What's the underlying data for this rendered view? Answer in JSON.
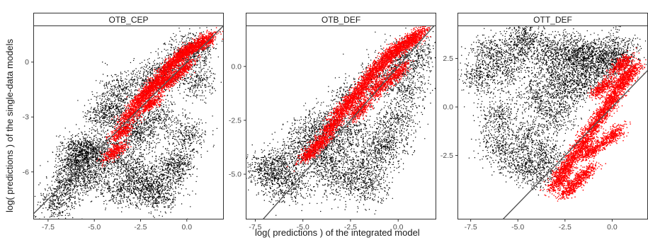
{
  "axes": {
    "xlabel": "log( predictions ) of the integrated model",
    "ylabel": "log( predictions ) of the single-data models"
  },
  "colors": {
    "background_points": "#000000",
    "highlight_points": "#ff0000",
    "identity_line": "#555555",
    "frame": "#333333"
  },
  "chart_data": [
    {
      "type": "scatter",
      "title": "OTB_CEP",
      "xlim": [
        -8.3,
        2.0
      ],
      "ylim": [
        -8.6,
        2.0
      ],
      "x_ticks": [
        -7.5,
        -5.0,
        -2.5,
        0.0
      ],
      "x_tick_labels": [
        "-7.5",
        "-5.0",
        "-2.5",
        "0.0"
      ],
      "y_ticks": [
        0,
        -3,
        -6
      ],
      "y_tick_labels": [
        "0",
        "-3",
        "-6"
      ],
      "reference_line": "y = x",
      "series": [
        {
          "color": "#000000",
          "points": [
            [
              -6.0,
              -5.0
            ],
            [
              -5.8,
              -5.1
            ],
            [
              -5.5,
              -5.0
            ],
            [
              -5.0,
              -4.9
            ],
            [
              -4.5,
              -3.0
            ],
            [
              -4.0,
              -2.5
            ],
            [
              -3.5,
              -1.5
            ],
            [
              -3.0,
              -5.8
            ],
            [
              -2.5,
              -6.6
            ],
            [
              -2.0,
              -7.0
            ],
            [
              -1.5,
              -7.2
            ],
            [
              -1.0,
              -6.0
            ],
            [
              -0.5,
              -5.5
            ],
            [
              0.0,
              -4.0
            ],
            [
              -6.5,
              -6.7
            ],
            [
              -7.0,
              -7.7
            ],
            [
              -2.0,
              -1.0
            ],
            [
              -1.0,
              -0.5
            ],
            [
              0.0,
              0.5
            ],
            [
              -3.0,
              -3.5
            ],
            [
              -4.0,
              -5.0
            ],
            [
              -5.0,
              -6.3
            ],
            [
              -6.0,
              -6.1
            ],
            [
              -3.5,
              -7.0
            ],
            [
              -2.5,
              -4.0
            ],
            [
              -1.5,
              -3.0
            ],
            [
              0.5,
              -1.0
            ],
            [
              0.5,
              0.8
            ]
          ]
        },
        {
          "color": "#ff0000",
          "points": [
            [
              -3.9,
              -4.9
            ],
            [
              -3.5,
              -3.8
            ],
            [
              -3.0,
              -2.8
            ],
            [
              -2.5,
              -2.0
            ],
            [
              -2.0,
              -1.5
            ],
            [
              -1.5,
              -1.0
            ],
            [
              -1.0,
              -0.3
            ],
            [
              -0.5,
              0.2
            ],
            [
              0.0,
              0.6
            ],
            [
              0.5,
              0.9
            ],
            [
              1.0,
              1.1
            ],
            [
              -2.0,
              -2.3
            ],
            [
              -1.0,
              -1.1
            ],
            [
              -0.2,
              -0.4
            ]
          ]
        }
      ]
    },
    {
      "type": "scatter",
      "title": "OTB_DEF",
      "xlim": [
        -8.0,
        2.0
      ],
      "ylim": [
        -7.1,
        1.9
      ],
      "x_ticks": [
        -7.5,
        -5.0,
        -2.5,
        0.0
      ],
      "x_tick_labels": [
        "-7.5",
        "-5.0",
        "-2.5",
        "0.0"
      ],
      "y_ticks": [
        0.0,
        -2.5,
        -5.0
      ],
      "y_tick_labels": [
        "0.0",
        "-2.5",
        "-5.0"
      ],
      "reference_line": "y = x",
      "series": [
        {
          "color": "#000000",
          "points": [
            [
              -7.0,
              -4.8
            ],
            [
              -6.5,
              -5.2
            ],
            [
              -6.0,
              -4.5
            ],
            [
              -5.5,
              -5.5
            ],
            [
              -5.0,
              -3.8
            ],
            [
              -4.5,
              -3.0
            ],
            [
              -4.0,
              -4.5
            ],
            [
              -3.5,
              -2.8
            ],
            [
              -3.0,
              -5.2
            ],
            [
              -2.5,
              -1.5
            ],
            [
              -2.0,
              -4.8
            ],
            [
              -1.5,
              -5.6
            ],
            [
              -1.0,
              -4.0
            ],
            [
              -0.5,
              -3.5
            ],
            [
              0.0,
              -2.5
            ],
            [
              0.5,
              -1.0
            ],
            [
              -1.0,
              -0.5
            ],
            [
              0.0,
              0.3
            ],
            [
              -2.5,
              -3.0
            ],
            [
              -3.5,
              -3.8
            ],
            [
              1.0,
              0.6
            ]
          ]
        },
        {
          "color": "#ff0000",
          "points": [
            [
              -4.6,
              -4.0
            ],
            [
              -4.0,
              -3.5
            ],
            [
              -3.5,
              -2.8
            ],
            [
              -3.0,
              -2.1
            ],
            [
              -2.5,
              -1.6
            ],
            [
              -2.0,
              -1.1
            ],
            [
              -1.5,
              -0.5
            ],
            [
              -1.0,
              0.0
            ],
            [
              -0.5,
              0.5
            ],
            [
              0.0,
              0.8
            ],
            [
              0.5,
              1.1
            ],
            [
              1.0,
              1.4
            ],
            [
              -2.0,
              -2.0
            ],
            [
              -1.0,
              -1.0
            ],
            [
              0.0,
              -0.3
            ]
          ]
        }
      ]
    },
    {
      "type": "scatter",
      "title": "OTT_DEF",
      "xlim": [
        -8.2,
        1.9
      ],
      "ylim": [
        -5.8,
        4.2
      ],
      "x_ticks": [
        -7.5,
        -5.0,
        -2.5,
        0.0
      ],
      "x_tick_labels": [
        "-7.5",
        "-5.0",
        "-2.5",
        "0.0"
      ],
      "y_ticks": [
        2.5,
        0.0,
        -2.5
      ],
      "y_tick_labels": [
        "2.5",
        "0.0",
        "-2.5"
      ],
      "reference_line": "y = x",
      "series": [
        {
          "color": "#000000",
          "points": [
            [
              -7.0,
              1.5
            ],
            [
              -6.5,
              2.8
            ],
            [
              -6.0,
              -0.5
            ],
            [
              -5.5,
              2.0
            ],
            [
              -5.0,
              3.2
            ],
            [
              -4.5,
              -1.5
            ],
            [
              -4.0,
              0.5
            ],
            [
              -3.5,
              2.8
            ],
            [
              -3.0,
              1.5
            ],
            [
              -2.5,
              3.0
            ],
            [
              -2.0,
              2.2
            ],
            [
              -1.5,
              2.8
            ],
            [
              -1.0,
              2.5
            ],
            [
              -0.5,
              2.0
            ],
            [
              0.0,
              2.8
            ],
            [
              0.5,
              2.7
            ],
            [
              -6.0,
              -2.0
            ],
            [
              -5.0,
              -3.0
            ],
            [
              -4.0,
              -3.3
            ],
            [
              -3.0,
              -0.5
            ],
            [
              -2.5,
              0.8
            ],
            [
              -1.5,
              1.2
            ],
            [
              -4.5,
              3.5
            ],
            [
              -3.5,
              -2.5
            ]
          ]
        },
        {
          "color": "#ff0000",
          "points": [
            [
              -2.8,
              -3.8
            ],
            [
              -2.5,
              -3.2
            ],
            [
              -2.0,
              -2.5
            ],
            [
              -1.5,
              -1.8
            ],
            [
              -1.0,
              -1.0
            ],
            [
              -0.5,
              -0.3
            ],
            [
              0.0,
              0.4
            ],
            [
              0.5,
              1.2
            ],
            [
              1.0,
              1.8
            ],
            [
              -1.5,
              -3.5
            ],
            [
              -1.0,
              -2.2
            ],
            [
              0.0,
              -1.5
            ],
            [
              -0.5,
              1.0
            ],
            [
              0.5,
              2.2
            ],
            [
              -2.2,
              -4.2
            ]
          ]
        }
      ]
    }
  ]
}
